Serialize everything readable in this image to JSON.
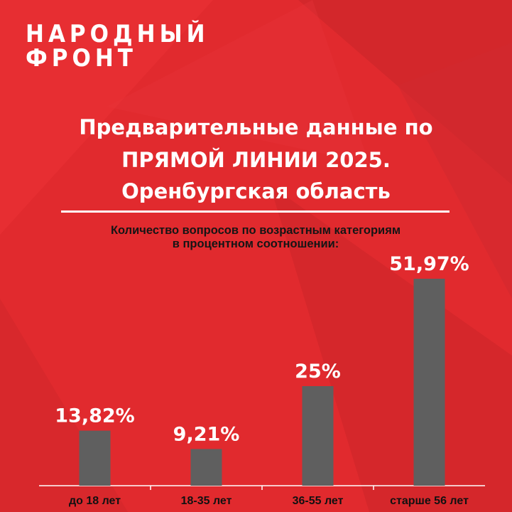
{
  "logo": {
    "line1": "НАРОДНЫЙ",
    "line2": "ФРОНТ"
  },
  "header": {
    "title_line1": "Предварительные данные по",
    "title_line2": "ПРЯМОЙ ЛИНИИ 2025.",
    "title_line3": "Оренбургская область"
  },
  "subtitle": {
    "line1": "Количество вопросов по возрастным категориям",
    "line2": "в процентном соотношении:"
  },
  "colors": {
    "background": "#e32a2e",
    "bar": "#5f5f5f",
    "text": "#ffffff",
    "axis": "#ffffff"
  },
  "chart_data": {
    "type": "bar",
    "categories": [
      "до 18 лет",
      "18-35 лет",
      "36-55 лет",
      "старше 56 лет"
    ],
    "values": [
      13.82,
      9.21,
      25,
      51.97
    ],
    "value_labels": [
      "13,82%",
      "9,21%",
      "25%",
      "51,97%"
    ],
    "ylim": [
      0,
      60
    ],
    "grid": false,
    "legend": "none"
  }
}
